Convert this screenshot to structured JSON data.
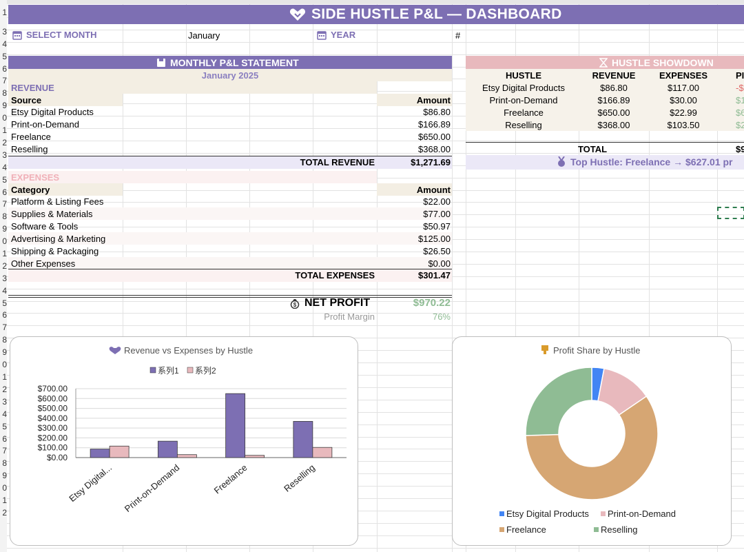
{
  "header": {
    "title": "SIDE HUSTLE P&L — DASHBOARD"
  },
  "selectors": {
    "month_label": "SELECT MONTH",
    "month_value": "January",
    "year_label": "YEAR",
    "year_value": "#"
  },
  "statement": {
    "title": "MONTHLY P&L STATEMENT",
    "period": "January 2025",
    "revenue_heading": "REVENUE",
    "revenue_col_source": "Source",
    "revenue_col_amount": "Amount",
    "revenue_rows": [
      {
        "name": "Etsy Digital Products",
        "amount": "$86.80"
      },
      {
        "name": "Print-on-Demand",
        "amount": "$166.89"
      },
      {
        "name": "Freelance",
        "amount": "$650.00"
      },
      {
        "name": "Reselling",
        "amount": "$368.00"
      }
    ],
    "total_revenue_label": "TOTAL REVENUE",
    "total_revenue": "$1,271.69",
    "expenses_heading": "EXPENSES",
    "expenses_col_category": "Category",
    "expenses_col_amount": "Amount",
    "expense_rows": [
      {
        "name": "Platform & Listing Fees",
        "amount": "$22.00"
      },
      {
        "name": "Supplies & Materials",
        "amount": "$77.00"
      },
      {
        "name": "Software & Tools",
        "amount": "$50.97"
      },
      {
        "name": "Advertising & Marketing",
        "amount": "$125.00"
      },
      {
        "name": "Shipping & Packaging",
        "amount": "$26.50"
      },
      {
        "name": "Other Expenses",
        "amount": "$0.00"
      }
    ],
    "total_expenses_label": "TOTAL EXPENSES",
    "total_expenses": "$301.47",
    "net_profit_label": "NET PROFIT",
    "net_profit": "$970.22",
    "margin_label": "Profit Margin",
    "margin_value": "76%"
  },
  "showdown": {
    "title": "HUSTLE SHOWDOWN",
    "headers": [
      "HUSTLE",
      "REVENUE",
      "EXPENSES",
      "PI"
    ],
    "rows": [
      {
        "name": "Etsy Digital Products",
        "revenue": "$86.80",
        "expenses": "$117.00",
        "profit": "-$"
      },
      {
        "name": "Print-on-Demand",
        "revenue": "$166.89",
        "expenses": "$30.00",
        "profit": "$1"
      },
      {
        "name": "Freelance",
        "revenue": "$650.00",
        "expenses": "$22.99",
        "profit": "$6"
      },
      {
        "name": "Reselling",
        "revenue": "$368.00",
        "expenses": "$103.50",
        "profit": "$2"
      }
    ],
    "total_label": "TOTAL",
    "total_profit": "$9",
    "top_hustle": "Top Hustle: Freelance → $627.01 pr"
  },
  "row_numbers": [
    "1",
    "3",
    "4",
    "5",
    "6",
    "7",
    "8",
    "9",
    "0",
    "1",
    "2",
    "3",
    "4",
    "5",
    "6",
    "7",
    "8",
    "9",
    "0",
    "1",
    "2",
    "3",
    "4",
    "5",
    "6",
    "7",
    "8",
    "9",
    "0",
    "1",
    "2",
    "3",
    "4",
    "5",
    "6",
    "7",
    "8",
    "9",
    "0",
    "1",
    "2"
  ],
  "colors": {
    "purple": "#7d6fb3",
    "pink_band": "#e8b9bd",
    "beige": "#f3eee3",
    "lavender": "#ebe8f7",
    "green": "#8fbc94",
    "red": "#e06666",
    "expense_pink": "#f0b0b8",
    "pink_soft": "#fbf1f1"
  },
  "chart_data": [
    {
      "type": "bar",
      "title": "Revenue vs Expenses by Hustle",
      "categories": [
        "Etsy Digital...",
        "Print-on-Demand",
        "Freelance",
        "Reselling"
      ],
      "series": [
        {
          "name": "系列1",
          "values": [
            86.8,
            166.89,
            650.0,
            368.0
          ],
          "color": "#7d6fb3"
        },
        {
          "name": "系列2",
          "values": [
            117.0,
            30.0,
            22.99,
            103.5
          ],
          "color": "#e8b9bd"
        }
      ],
      "yticks": [
        "$0.00",
        "$100.00",
        "$200.00",
        "$300.00",
        "$400.00",
        "$500.00",
        "$600.00",
        "$700.00"
      ],
      "ylim": [
        0,
        700
      ],
      "legend": "top"
    },
    {
      "type": "pie",
      "title": "Profit Share by Hustle",
      "labels": [
        "Etsy Digital Products",
        "Print-on-Demand",
        "Freelance",
        "Reselling"
      ],
      "values": [
        3,
        12.5,
        59,
        25.5
      ],
      "colors": [
        "#4285f4",
        "#e8b9bd",
        "#d6a673",
        "#8fbc94"
      ],
      "hole": 0.5,
      "legend": "bottom"
    }
  ]
}
